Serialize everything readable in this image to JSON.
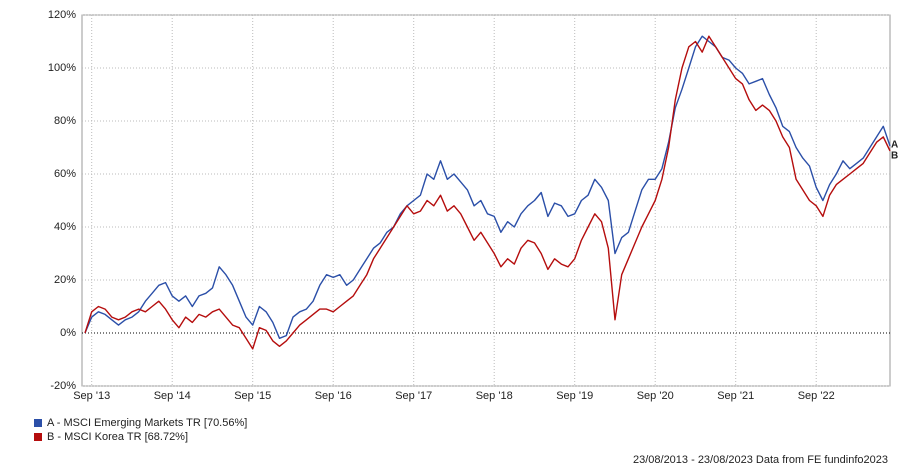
{
  "chart_data": {
    "type": "line",
    "categories": [
      null,
      "Sep '13",
      null,
      null,
      null,
      null,
      null,
      null,
      null,
      null,
      null,
      null,
      null,
      "Sep '14",
      null,
      null,
      null,
      null,
      null,
      null,
      null,
      null,
      null,
      null,
      null,
      "Sep '15",
      null,
      null,
      null,
      null,
      null,
      null,
      null,
      null,
      null,
      null,
      null,
      "Sep '16",
      null,
      null,
      null,
      null,
      null,
      null,
      null,
      null,
      null,
      null,
      null,
      "Sep '17",
      null,
      null,
      null,
      null,
      null,
      null,
      null,
      null,
      null,
      null,
      null,
      "Sep '18",
      null,
      null,
      null,
      null,
      null,
      null,
      null,
      null,
      null,
      null,
      null,
      "Sep '19",
      null,
      null,
      null,
      null,
      null,
      null,
      null,
      null,
      null,
      null,
      null,
      "Sep '20",
      null,
      null,
      null,
      null,
      null,
      null,
      null,
      null,
      null,
      null,
      null,
      "Sep '21",
      null,
      null,
      null,
      null,
      null,
      null,
      null,
      null,
      null,
      null,
      null,
      "Sep '22",
      null,
      null,
      null,
      null,
      null,
      null,
      null,
      null,
      null,
      null,
      null
    ],
    "series": [
      {
        "name": "A - MSCI Emerging Markets TR [70.56%]",
        "end_label": "A",
        "color": "#2b4fa8",
        "values": [
          0,
          6,
          8,
          7,
          5,
          3,
          5,
          6,
          8,
          12,
          15,
          18,
          19,
          14,
          12,
          14,
          10,
          14,
          15,
          17,
          25,
          22,
          18,
          12,
          6,
          3,
          10,
          8,
          4,
          -2,
          -1,
          6,
          8,
          9,
          12,
          18,
          22,
          21,
          22,
          18,
          20,
          24,
          28,
          32,
          34,
          38,
          40,
          45,
          48,
          50,
          52,
          60,
          58,
          65,
          58,
          60,
          57,
          54,
          48,
          50,
          45,
          44,
          38,
          42,
          40,
          45,
          48,
          50,
          53,
          44,
          49,
          48,
          44,
          45,
          50,
          52,
          58,
          55,
          50,
          30,
          36,
          38,
          46,
          54,
          58,
          58,
          62,
          72,
          85,
          92,
          100,
          108,
          112,
          110,
          108,
          104,
          103,
          100,
          98,
          94,
          95,
          96,
          90,
          85,
          78,
          76,
          70,
          66,
          63,
          55,
          50,
          56,
          60,
          65,
          62,
          64,
          66,
          70,
          74,
          78,
          70.56
        ]
      },
      {
        "name": "B - MSCI Korea TR [68.72%]",
        "end_label": "B",
        "color": "#b50d0d",
        "values": [
          0,
          8,
          10,
          9,
          6,
          5,
          6,
          8,
          9,
          8,
          10,
          12,
          9,
          5,
          2,
          6,
          4,
          7,
          6,
          8,
          9,
          6,
          3,
          2,
          -2,
          -6,
          2,
          1,
          -3,
          -5,
          -3,
          0,
          3,
          5,
          7,
          9,
          9,
          8,
          10,
          12,
          14,
          18,
          22,
          28,
          32,
          36,
          40,
          44,
          48,
          45,
          46,
          50,
          48,
          52,
          46,
          48,
          45,
          40,
          35,
          38,
          34,
          30,
          25,
          28,
          26,
          32,
          35,
          34,
          30,
          24,
          28,
          26,
          25,
          28,
          35,
          40,
          45,
          42,
          32,
          5,
          22,
          28,
          34,
          40,
          45,
          50,
          58,
          70,
          88,
          100,
          108,
          110,
          106,
          112,
          108,
          104,
          100,
          96,
          94,
          88,
          84,
          86,
          84,
          80,
          74,
          70,
          58,
          54,
          50,
          48,
          44,
          52,
          56,
          58,
          60,
          62,
          64,
          68,
          72,
          74,
          68.72
        ]
      }
    ],
    "ylim": [
      -20,
      120
    ],
    "yticks": [
      {
        "value": -20,
        "label": "-20%"
      },
      {
        "value": 0,
        "label": "0%"
      },
      {
        "value": 20,
        "label": "20%"
      },
      {
        "value": 40,
        "label": "40%"
      },
      {
        "value": 60,
        "label": "60%"
      },
      {
        "value": 80,
        "label": "80%"
      },
      {
        "value": 100,
        "label": "100%"
      },
      {
        "value": 120,
        "label": "120%"
      }
    ],
    "grid": true,
    "footnote": "23/08/2013 - 23/08/2023 Data from FE fundinfo2023"
  }
}
